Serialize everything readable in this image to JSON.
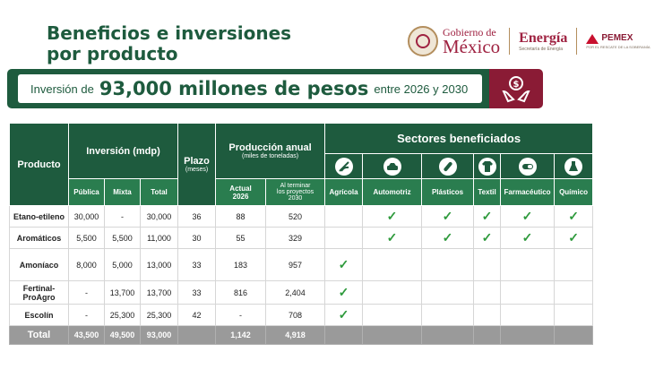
{
  "title": {
    "line1": "Beneficios e inversiones",
    "line2": "por producto"
  },
  "logos": {
    "gobierno_top": "Gobierno de",
    "gobierno_main": "México",
    "energia_main": "Energía",
    "energia_sub": "Secretaría de Energía",
    "pemex_main": "PEMEX",
    "pemex_sub": "POR EL RESCATE DE LA SOBERANÍA"
  },
  "banner": {
    "prefix": "Inversión de",
    "amount": "93,000 millones de pesos",
    "suffix": "entre 2026 y 2030",
    "icon": "money-hands-icon"
  },
  "table": {
    "headers": {
      "producto": "Producto",
      "inversion": "Inversión (mdp)",
      "plazo": "Plazo",
      "plazo_sub": "(meses)",
      "produccion": "Producción anual",
      "produccion_sub": "(miles de toneladas)",
      "sectores": "Sectores beneficiados",
      "publica": "Pública",
      "mixta": "Mixta",
      "total": "Total",
      "actual_line1": "Actual",
      "actual_line2": "2026",
      "alterminar_line1": "Al terminar",
      "alterminar_line2": "los proyectos",
      "alterminar_line3": "2030",
      "agricola": "Agrícola",
      "automotriz": "Automotriz",
      "plasticos": "Plásticos",
      "textil": "Textil",
      "farmaceutico": "Farmacéutico",
      "quimico": "Químico"
    },
    "sector_icons": [
      "agriculture-icon",
      "car-icon",
      "plastic-icon",
      "shirt-icon",
      "pill-icon",
      "flask-icon"
    ],
    "check": "✓",
    "rows": [
      {
        "producto": "Etano-etileno",
        "publica": "30,000",
        "mixta": "-",
        "total": "30,000",
        "plazo": "36",
        "actual": "88",
        "final": "520",
        "agricola": false,
        "automotriz": true,
        "plasticos": true,
        "textil": true,
        "farmaceutico": true,
        "quimico": true
      },
      {
        "producto": "Aromáticos",
        "publica": "5,500",
        "mixta": "5,500",
        "total": "11,000",
        "plazo": "30",
        "actual": "55",
        "final": "329",
        "agricola": false,
        "automotriz": true,
        "plasticos": true,
        "textil": true,
        "farmaceutico": true,
        "quimico": true
      },
      {
        "producto": "Amoníaco",
        "publica": "8,000",
        "mixta": "5,000",
        "total": "13,000",
        "plazo": "33",
        "actual": "183",
        "final": "957",
        "agricola": true,
        "automotriz": false,
        "plasticos": false,
        "textil": false,
        "farmaceutico": false,
        "quimico": false
      },
      {
        "producto_line1": "Fertinal-",
        "producto_line2": "ProAgro",
        "publica": "-",
        "mixta": "13,700",
        "total": "13,700",
        "plazo": "33",
        "actual": "816",
        "final": "2,404",
        "agricola": true,
        "automotriz": false,
        "plasticos": false,
        "textil": false,
        "farmaceutico": false,
        "quimico": false
      },
      {
        "producto": "Escolín",
        "publica": "-",
        "mixta": "25,300",
        "total": "25,300",
        "plazo": "42",
        "actual": "-",
        "final": "708",
        "agricola": true,
        "automotriz": false,
        "plasticos": false,
        "textil": false,
        "farmaceutico": false,
        "quimico": false
      }
    ],
    "totals": {
      "label": "Total",
      "publica": "43,500",
      "mixta": "49,500",
      "total": "93,000",
      "actual": "1,142",
      "final": "4,918"
    }
  },
  "colors": {
    "green_dark": "#1e5b3e",
    "green_mid": "#2a7d4f",
    "guinda": "#9f2241",
    "check": "#2e9a3c",
    "total_gray": "#9a9a9a"
  }
}
